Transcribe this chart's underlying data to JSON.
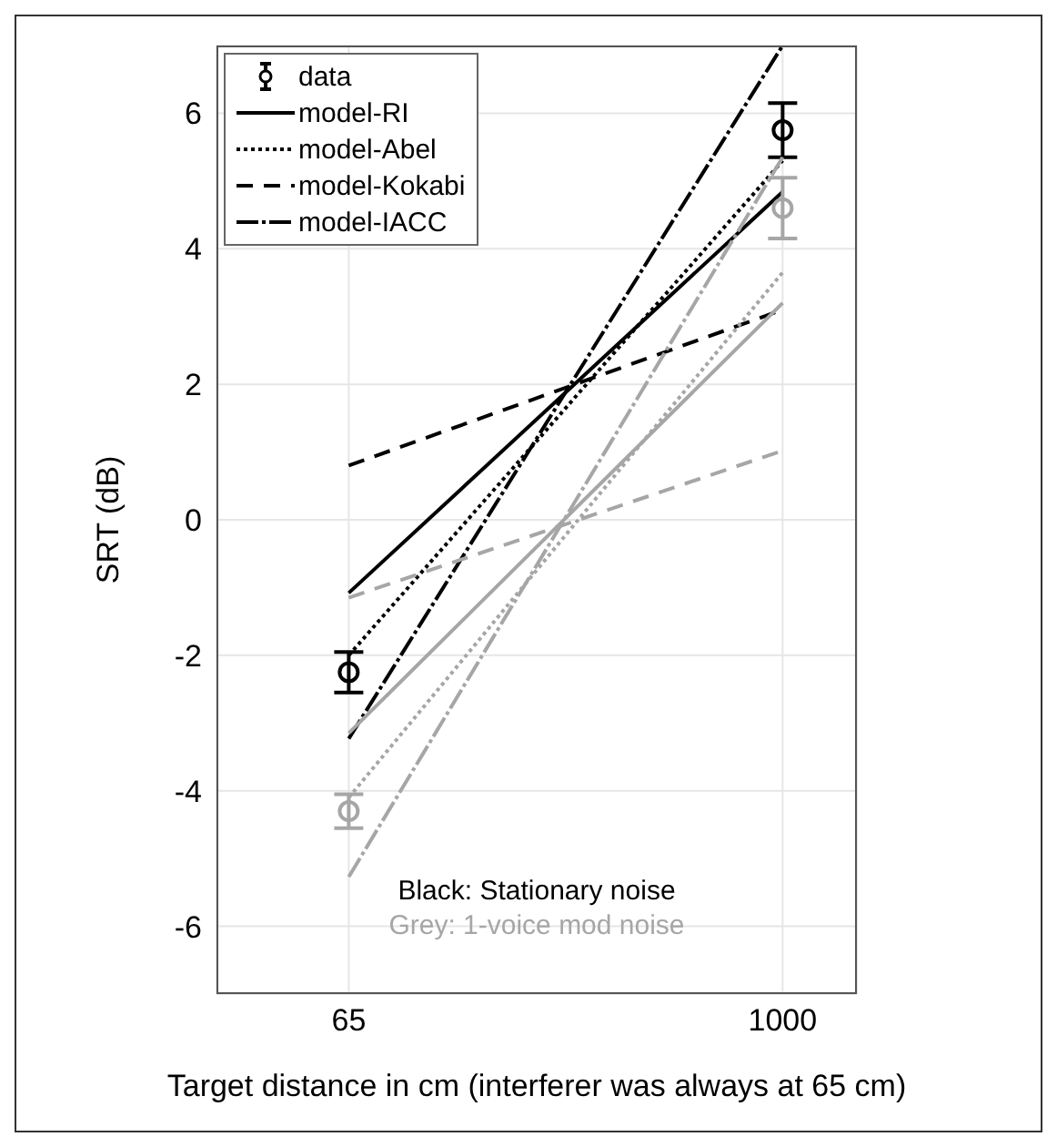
{
  "chart_data": {
    "type": "line",
    "xlabel": "Target distance in cm (interferer was always at 65 cm)",
    "ylabel": "SRT (dB)",
    "x": [
      65,
      1000
    ],
    "xlim": [
      -220,
      1160
    ],
    "xticks": [
      65,
      1000
    ],
    "ylim": [
      -7,
      7
    ],
    "yticks": [
      -6,
      -4,
      -2,
      0,
      2,
      4,
      6
    ],
    "grid": true,
    "legend": "top left",
    "series": [
      {
        "name": "data",
        "type": "scatter",
        "marker": "circle",
        "color": "#000000",
        "values": [
          -2.25,
          5.75
        ],
        "errors": [
          0.3,
          0.4
        ]
      },
      {
        "name": "model-RI",
        "line_style": "solid",
        "color": "#000000",
        "values": [
          -1.08,
          4.84
        ]
      },
      {
        "name": "model-Abel",
        "line_style": "dotted",
        "color": "#000000",
        "values": [
          -2.0,
          5.3
        ]
      },
      {
        "name": "model-Kokabi",
        "line_style": "dashed",
        "color": "#000000",
        "values": [
          0.8,
          3.1
        ]
      },
      {
        "name": "model-IACC",
        "line_style": "dashdot",
        "color": "#000000",
        "values": [
          -3.23,
          7.0
        ]
      },
      {
        "type": "scatter",
        "marker": "circle",
        "color": "#a6a6a6",
        "values": [
          -4.3,
          4.6
        ],
        "errors": [
          0.25,
          0.45
        ]
      },
      {
        "line_style": "solid",
        "color": "#a6a6a6",
        "values": [
          -3.15,
          3.2
        ]
      },
      {
        "line_style": "dotted",
        "color": "#a6a6a6",
        "values": [
          -4.1,
          3.65
        ]
      },
      {
        "line_style": "dashed",
        "color": "#a6a6a6",
        "values": [
          -1.15,
          1.02
        ]
      },
      {
        "line_style": "dashdot",
        "color": "#a6a6a6",
        "values": [
          -5.27,
          5.35
        ]
      }
    ],
    "annotations": [
      "Black: Stationary noise",
      "Grey: 1-voice mod noise"
    ]
  }
}
